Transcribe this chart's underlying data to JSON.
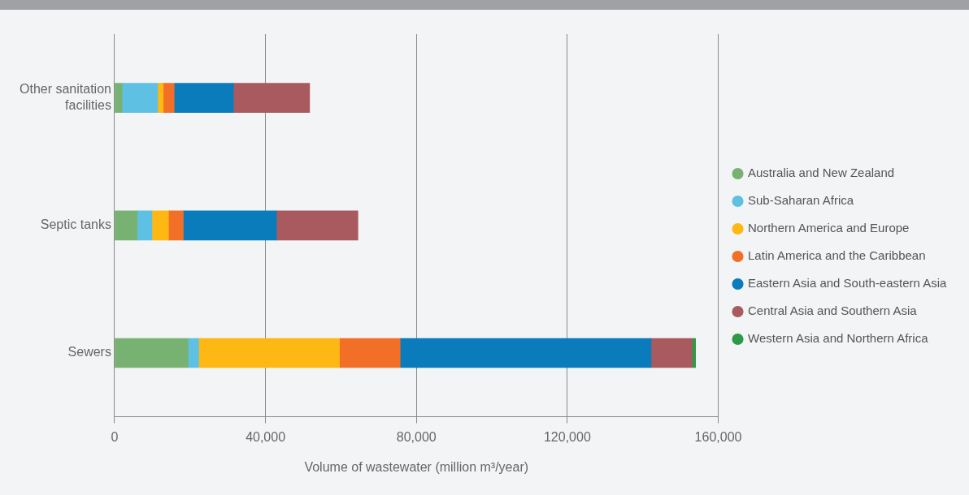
{
  "chart_data": {
    "type": "bar",
    "orientation": "horizontal",
    "stacked": true,
    "xlabel": "Volume of wastewater (million m³/year)",
    "categories": [
      "Other sanitation facilities",
      "Septic tanks",
      "Sewers"
    ],
    "series": [
      {
        "name": "Australia and New Zealand",
        "color": "#78b272",
        "values": [
          2000,
          6000,
          19500
        ]
      },
      {
        "name": "Sub-Saharan Africa",
        "color": "#5ec0e3",
        "values": [
          9400,
          3900,
          2800
        ]
      },
      {
        "name": "Northern America and Europe",
        "color": "#fdb813",
        "values": [
          1500,
          4400,
          37300
        ]
      },
      {
        "name": "Latin America and the Caribbean",
        "color": "#f26f27",
        "values": [
          2900,
          3900,
          16100
        ]
      },
      {
        "name": "Eastern Asia and South-eastern Asia",
        "color": "#0a7bbb",
        "values": [
          15700,
          24700,
          66500
        ]
      },
      {
        "name": "Central Asia and Southern Asia",
        "color": "#a85a5f",
        "values": [
          20200,
          21600,
          10900
        ]
      },
      {
        "name": "Western Asia and Northern Africa",
        "color": "#2e9a47",
        "values": [
          null,
          null,
          900
        ]
      }
    ],
    "xlim": [
      0,
      160000
    ],
    "xticks": [
      {
        "value": 0,
        "label": "0"
      },
      {
        "value": 40000,
        "label": "40,000"
      },
      {
        "value": 80000,
        "label": "80,000"
      },
      {
        "value": 120000,
        "label": "120,000"
      },
      {
        "value": 160000,
        "label": "160,000"
      }
    ],
    "grid": "x",
    "legend": "right"
  }
}
